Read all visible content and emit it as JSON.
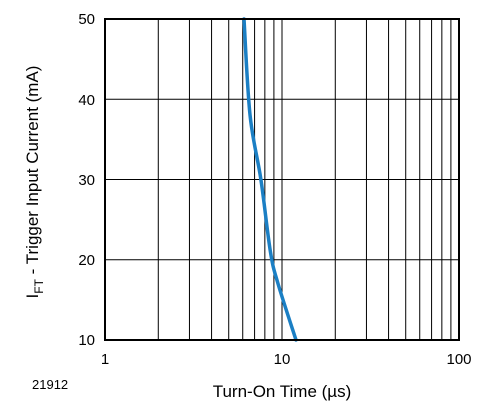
{
  "figure_id": "21912",
  "chart_data": {
    "type": "line",
    "xlabel": "Turn-On Time (µs)",
    "ylabel": {
      "main": "I",
      "sub": "FT",
      "rest": " - Trigger Input Current (mA)"
    },
    "xscale": "log",
    "xlim": [
      1,
      100
    ],
    "ylim": [
      10,
      50
    ],
    "x_tick_labels": [
      "1",
      "10",
      "100"
    ],
    "y_tick_labels": [
      "50",
      "40",
      "30",
      "20",
      "10"
    ],
    "grid": true,
    "series": [
      {
        "color": "#1b7fc4",
        "points": [
          {
            "x": 6.1,
            "y": 50
          },
          {
            "x": 6.6,
            "y": 38
          },
          {
            "x": 7.6,
            "y": 30
          },
          {
            "x": 8.6,
            "y": 21
          },
          {
            "x": 9.5,
            "y": 17
          },
          {
            "x": 12.0,
            "y": 10
          }
        ]
      }
    ]
  }
}
